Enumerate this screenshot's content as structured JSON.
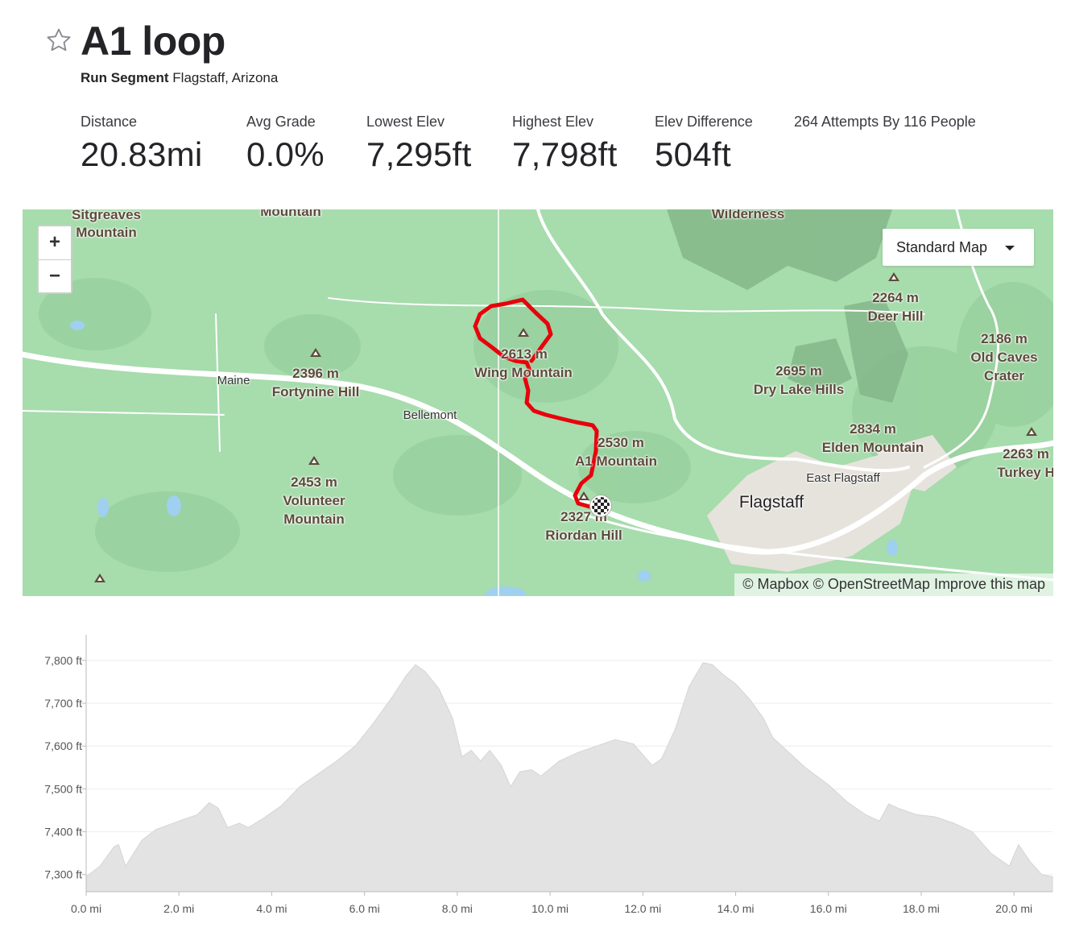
{
  "segment": {
    "title": "A1 loop",
    "type_label": "Run Segment",
    "location": "Flagstaff, Arizona"
  },
  "stats": [
    {
      "label": "Distance",
      "value": "20.83mi"
    },
    {
      "label": "Avg Grade",
      "value": "0.0%"
    },
    {
      "label": "Lowest Elev",
      "value": "7,295ft"
    },
    {
      "label": "Highest Elev",
      "value": "7,798ft"
    },
    {
      "label": "Elev Difference",
      "value": "504ft"
    }
  ],
  "attempts": "264 Attempts By 116 People",
  "map": {
    "zoom_in": "+",
    "zoom_out": "−",
    "style_select": "Standard Map",
    "attribution": {
      "mapbox": "© Mapbox",
      "osm": "© OpenStreetMap",
      "improve": "Improve this map"
    },
    "labels": [
      {
        "text": "Sitgreaves",
        "kind": "peak"
      },
      {
        "text": "Mountain",
        "kind": "peak"
      },
      {
        "text": "Mountain",
        "kind": "peak"
      },
      {
        "text": "Wilderness",
        "kind": "area"
      },
      {
        "text": "2264 m",
        "kind": "peak"
      },
      {
        "text": "Deer Hill",
        "kind": "peak"
      },
      {
        "text": "2186 m",
        "kind": "peak"
      },
      {
        "text": "Old Caves",
        "kind": "peak"
      },
      {
        "text": "Crater",
        "kind": "peak"
      },
      {
        "text": "2613 m",
        "kind": "peak"
      },
      {
        "text": "Wing Mountain",
        "kind": "peak"
      },
      {
        "text": "2396 m",
        "kind": "peak"
      },
      {
        "text": "Fortynine Hill",
        "kind": "peak"
      },
      {
        "text": "Maine",
        "kind": "town"
      },
      {
        "text": "Bellemont",
        "kind": "town"
      },
      {
        "text": "2695 m",
        "kind": "peak"
      },
      {
        "text": "Dry Lake Hills",
        "kind": "peak"
      },
      {
        "text": "2834 m",
        "kind": "peak"
      },
      {
        "text": "Elden Mountain",
        "kind": "peak"
      },
      {
        "text": "2263 m",
        "kind": "peak"
      },
      {
        "text": "Turkey H",
        "kind": "peak"
      },
      {
        "text": "2530 m",
        "kind": "peak"
      },
      {
        "text": "A1 Mountain",
        "kind": "peak"
      },
      {
        "text": "East Flagstaff",
        "kind": "town"
      },
      {
        "text": "Flagstaff",
        "kind": "city"
      },
      {
        "text": "2453 m",
        "kind": "peak"
      },
      {
        "text": "Volunteer",
        "kind": "peak"
      },
      {
        "text": "Mountain",
        "kind": "peak"
      },
      {
        "text": "2327 m",
        "kind": "peak"
      },
      {
        "text": "Riordan Hill",
        "kind": "peak"
      }
    ],
    "route_color": "#e8000b"
  },
  "chart_data": {
    "type": "area",
    "x_unit": "mi",
    "y_unit": "ft",
    "xlim": [
      0,
      20.83
    ],
    "ylim": [
      7260,
      7860
    ],
    "x_ticks": [
      "0.0 mi",
      "2.0 mi",
      "4.0 mi",
      "6.0 mi",
      "8.0 mi",
      "10.0 mi",
      "12.0 mi",
      "14.0 mi",
      "16.0 mi",
      "18.0 mi",
      "20.0 mi"
    ],
    "y_ticks": [
      "7,300 ft",
      "7,400 ft",
      "7,500 ft",
      "7,600 ft",
      "7,700 ft",
      "7,800 ft"
    ],
    "fill_color": "#e3e3e3",
    "x": [
      0.0,
      0.3,
      0.6,
      0.7,
      0.85,
      1.2,
      1.5,
      2.0,
      2.4,
      2.65,
      2.85,
      3.05,
      3.3,
      3.5,
      3.8,
      4.2,
      4.6,
      5.0,
      5.4,
      5.8,
      6.2,
      6.6,
      6.9,
      7.1,
      7.3,
      7.6,
      7.9,
      8.1,
      8.3,
      8.5,
      8.7,
      8.95,
      9.15,
      9.35,
      9.6,
      9.8,
      10.2,
      10.6,
      11.0,
      11.4,
      11.8,
      12.0,
      12.2,
      12.4,
      12.7,
      13.0,
      13.3,
      13.5,
      13.7,
      14.0,
      14.3,
      14.6,
      14.8,
      15.1,
      15.5,
      16.0,
      16.4,
      16.8,
      17.1,
      17.3,
      17.5,
      17.9,
      18.3,
      18.7,
      19.1,
      19.5,
      19.9,
      20.1,
      20.35,
      20.6,
      20.83
    ],
    "values": [
      7295,
      7320,
      7365,
      7370,
      7320,
      7380,
      7405,
      7425,
      7440,
      7468,
      7455,
      7410,
      7420,
      7410,
      7430,
      7460,
      7505,
      7535,
      7565,
      7600,
      7655,
      7715,
      7765,
      7790,
      7775,
      7735,
      7665,
      7575,
      7590,
      7565,
      7590,
      7555,
      7505,
      7540,
      7545,
      7530,
      7565,
      7585,
      7600,
      7615,
      7605,
      7580,
      7555,
      7570,
      7640,
      7740,
      7795,
      7790,
      7770,
      7745,
      7710,
      7665,
      7620,
      7590,
      7550,
      7510,
      7470,
      7440,
      7425,
      7465,
      7455,
      7440,
      7435,
      7420,
      7400,
      7350,
      7320,
      7370,
      7330,
      7300,
      7295
    ]
  }
}
